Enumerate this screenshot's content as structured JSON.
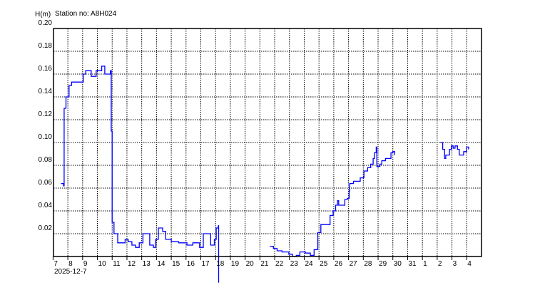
{
  "chart_data": {
    "type": "line",
    "title": "Station no: A8H024",
    "ylabel": "H(m)",
    "xlabel": "",
    "date_label": "2025-12-7",
    "ylim": [
      0,
      0.2
    ],
    "xlim": [
      "2025-12-07 00:00",
      "2026-01-05 00:00"
    ],
    "y_ticks": [
      "0.20",
      "0.18",
      "0.16",
      "0.14",
      "0.12",
      "0.10",
      "0.08",
      "0.06",
      "0.04",
      "0.02"
    ],
    "x_ticks": [
      "7",
      "8",
      "9",
      "10",
      "11",
      "12",
      "13",
      "14",
      "15",
      "16",
      "17",
      "18",
      "19",
      "20",
      "21",
      "22",
      "23",
      "24",
      "25",
      "26",
      "27",
      "28",
      "29",
      "30",
      "31",
      "1",
      "2",
      "3",
      "4"
    ],
    "grid": true,
    "line_color": "#0000ff",
    "series": [
      {
        "segments": [
          [
            [
              "2025-12-07 13:00",
              0.064
            ],
            [
              "2025-12-07 17:00",
              0.062
            ],
            [
              "2025-12-07 18:00",
              0.13
            ],
            [
              "2025-12-07 21:00",
              0.14
            ],
            [
              "2025-12-08 02:00",
              0.15
            ],
            [
              "2025-12-08 06:00",
              0.153
            ],
            [
              "2025-12-08 20:00",
              0.153
            ],
            [
              "2025-12-09 01:00",
              0.16
            ],
            [
              "2025-12-09 05:00",
              0.163
            ],
            [
              "2025-12-09 14:00",
              0.158
            ],
            [
              "2025-12-09 22:00",
              0.163
            ],
            [
              "2025-12-10 07:00",
              0.167
            ],
            [
              "2025-12-10 12:00",
              0.16
            ],
            [
              "2025-12-10 18:00",
              0.16
            ],
            [
              "2025-12-10 21:00",
              0.163
            ],
            [
              "2025-12-10 22:30",
              0.11
            ],
            [
              "2025-12-11 00:00",
              0.03
            ],
            [
              "2025-12-11 03:00",
              0.02
            ],
            [
              "2025-12-11 09:00",
              0.012
            ],
            [
              "2025-12-11 15:00",
              0.012
            ],
            [
              "2025-12-11 21:00",
              0.015
            ],
            [
              "2025-12-12 02:00",
              0.013
            ],
            [
              "2025-12-12 08:00",
              0.01
            ],
            [
              "2025-12-12 14:00",
              0.008
            ],
            [
              "2025-12-12 20:00",
              0.012
            ],
            [
              "2025-12-13 02:00",
              0.02
            ],
            [
              "2025-12-13 07:00",
              0.02
            ],
            [
              "2025-12-13 13:00",
              0.01
            ],
            [
              "2025-12-13 19:00",
              0.008
            ],
            [
              "2025-12-13 22:30",
              0.015
            ],
            [
              "2025-12-14 03:00",
              0.025
            ],
            [
              "2025-12-14 10:00",
              0.022
            ],
            [
              "2025-12-14 15:00",
              0.015
            ],
            [
              "2025-12-15 00:00",
              0.013
            ],
            [
              "2025-12-15 12:00",
              0.012
            ],
            [
              "2025-12-15 23:00",
              0.012
            ],
            [
              "2025-12-16 01:30",
              0.01
            ],
            [
              "2025-12-16 11:00",
              0.012
            ],
            [
              "2025-12-16 17:00",
              0.012
            ],
            [
              "2025-12-16 22:00",
              0.008
            ],
            [
              "2025-12-17 04:00",
              0.02
            ],
            [
              "2025-12-17 10:00",
              0.02
            ],
            [
              "2025-12-17 16:00",
              0.01
            ],
            [
              "2025-12-17 22:00",
              0.015
            ],
            [
              "2025-12-18 01:00",
              0.025
            ],
            [
              "2025-12-18 04:30",
              0.027
            ],
            [
              "2025-12-18 05:00",
              0.027
            ],
            [
              "2025-12-18 05:00",
              -0.023
            ]
          ],
          [
            [
              "2025-12-21 16:00",
              0.009
            ],
            [
              "2025-12-21 22:00",
              0.007
            ],
            [
              "2025-12-22 04:00",
              0.005
            ],
            [
              "2025-12-22 12:00",
              0.004
            ],
            [
              "2025-12-22 23:00",
              0.002
            ],
            [
              "2025-12-23 05:00",
              0.0
            ],
            [
              "2025-12-23 11:00",
              0.001
            ],
            [
              "2025-12-23 17:00",
              0.004
            ],
            [
              "2025-12-24 02:00",
              0.003
            ],
            [
              "2025-12-24 10:00",
              0.001
            ],
            [
              "2025-12-24 16:00",
              0.006
            ],
            [
              "2025-12-24 22:00",
              0.021
            ],
            [
              "2025-12-25 03:00",
              0.028
            ],
            [
              "2025-12-25 15:00",
              0.028
            ],
            [
              "2025-12-25 18:00",
              0.036
            ],
            [
              "2025-12-25 23:00",
              0.04
            ],
            [
              "2025-12-26 03:00",
              0.045
            ],
            [
              "2025-12-26 06:00",
              0.049
            ],
            [
              "2025-12-26 08:00",
              0.045
            ],
            [
              "2025-12-26 14:00",
              0.045
            ],
            [
              "2025-12-26 18:00",
              0.05
            ],
            [
              "2025-12-26 22:00",
              0.051
            ],
            [
              "2025-12-27 01:00",
              0.0575
            ],
            [
              "2025-12-27 02:00",
              0.064
            ],
            [
              "2025-12-27 08:00",
              0.066
            ],
            [
              "2025-12-27 13:00",
              0.066
            ],
            [
              "2025-12-27 19:00",
              0.069
            ],
            [
              "2025-12-28 01:00",
              0.075
            ],
            [
              "2025-12-28 07:00",
              0.078
            ],
            [
              "2025-12-28 12:00",
              0.081
            ],
            [
              "2025-12-28 16:00",
              0.086
            ],
            [
              "2025-12-28 18:00",
              0.091
            ],
            [
              "2025-12-28 21:00",
              0.096
            ],
            [
              "2025-12-28 22:00",
              0.079
            ],
            [
              "2025-12-29 03:00",
              0.081
            ],
            [
              "2025-12-29 06:00",
              0.084
            ],
            [
              "2025-12-29 12:00",
              0.086
            ],
            [
              "2025-12-29 18:00",
              0.086
            ],
            [
              "2025-12-29 21:00",
              0.091
            ],
            [
              "2025-12-30 00:00",
              0.092
            ],
            [
              "2025-12-30 03:00",
              0.089
            ]
          ],
          [
            [
              "2026-01-02 05:00",
              0.1
            ],
            [
              "2026-01-02 09:00",
              0.094
            ],
            [
              "2026-01-02 12:00",
              0.086
            ],
            [
              "2026-01-02 14:00",
              0.089
            ],
            [
              "2026-01-02 20:00",
              0.094
            ],
            [
              "2026-01-02 23:00",
              0.097
            ],
            [
              "2026-01-03 02:00",
              0.095
            ],
            [
              "2026-01-03 05:00",
              0.097
            ],
            [
              "2026-01-03 09:00",
              0.094
            ],
            [
              "2026-01-03 12:00",
              0.089
            ],
            [
              "2026-01-03 16:00",
              0.089
            ],
            [
              "2026-01-03 19:00",
              0.092
            ],
            [
              "2026-01-04 00:00",
              0.096
            ],
            [
              "2026-01-04 03:00",
              0.094
            ]
          ]
        ]
      }
    ]
  }
}
